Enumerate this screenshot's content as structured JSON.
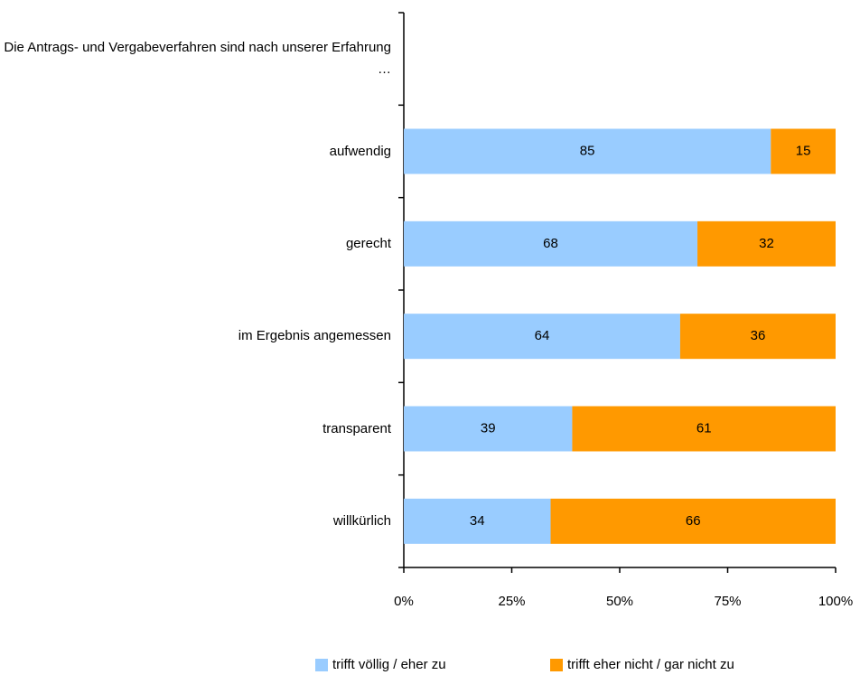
{
  "chart_data": {
    "type": "stacked-bar-horizontal",
    "categories": [
      "Die Antrags- und Vergabeverfahren sind nach unserer Erfahrung …",
      "aufwendig",
      "gerecht",
      "im Ergebnis angemessen",
      "transparent",
      "willkürlich"
    ],
    "series": [
      {
        "name": "trifft völlig / eher zu",
        "color": "#99ccff",
        "values": [
          null,
          85,
          68,
          64,
          39,
          34
        ]
      },
      {
        "name": "trifft eher nicht / gar nicht zu",
        "color": "#ff9900",
        "values": [
          null,
          15,
          32,
          36,
          61,
          66
        ]
      }
    ],
    "xlim": [
      0,
      100
    ],
    "xticks": [
      {
        "value": 0,
        "label": "0%"
      },
      {
        "value": 25,
        "label": "25%"
      },
      {
        "value": 50,
        "label": "50%"
      },
      {
        "value": 75,
        "label": "75%"
      },
      {
        "value": 100,
        "label": "100%"
      }
    ],
    "legend": "bottom"
  }
}
